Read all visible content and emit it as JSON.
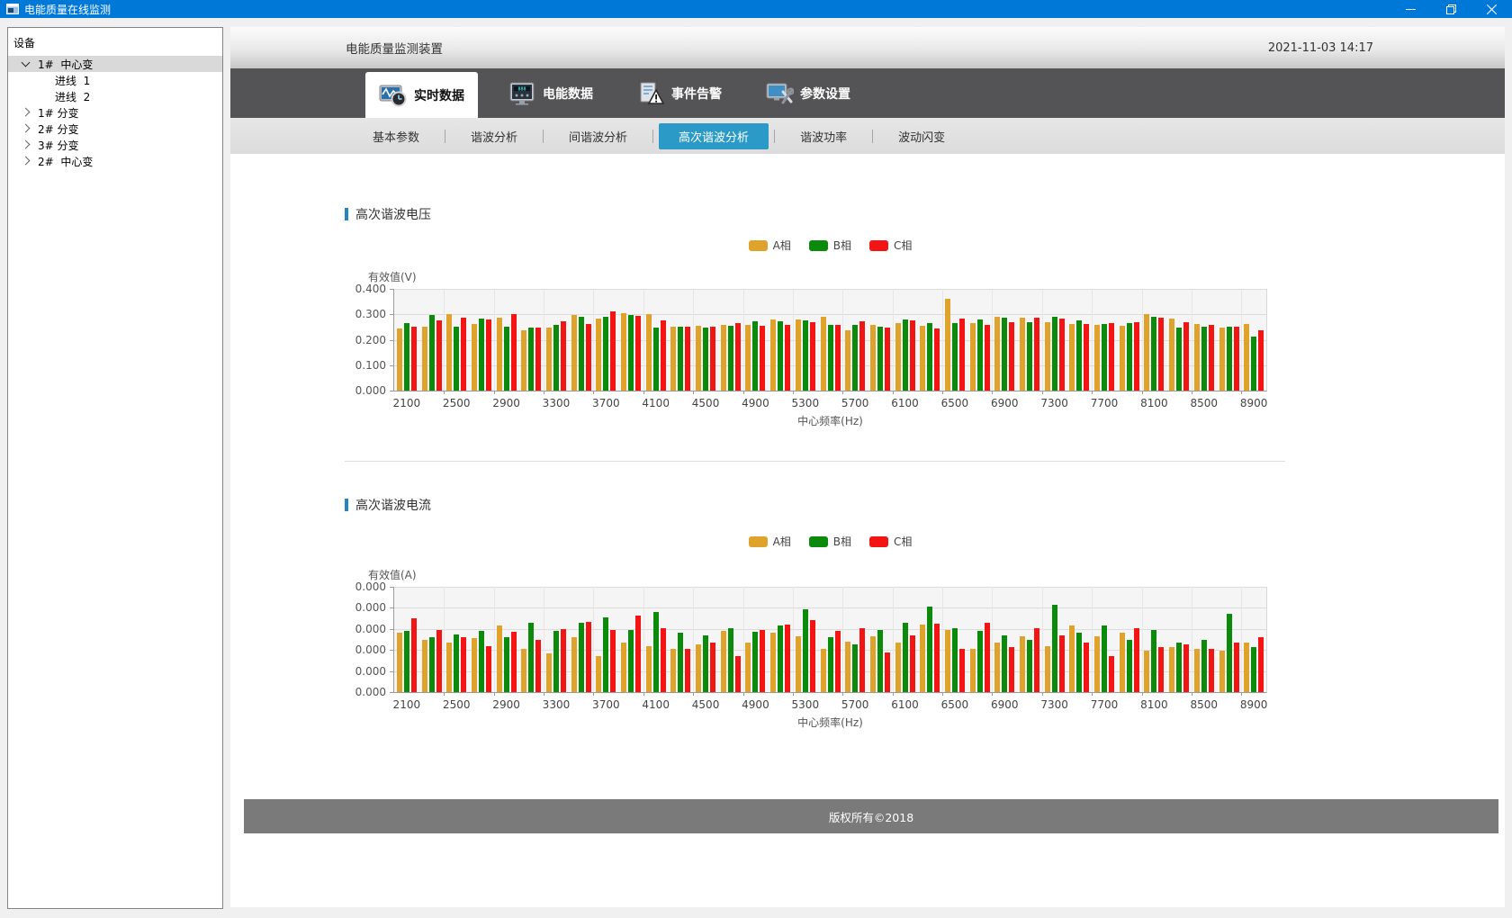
{
  "window": {
    "title": "电能质量在线监测",
    "titlebar_color": "#0078d7"
  },
  "sidebar": {
    "header": "设备",
    "items": [
      {
        "label": "1#  中心变",
        "chevron": "expanded",
        "level": 1,
        "selected": true
      },
      {
        "label": "进线  1",
        "chevron": "none",
        "level": 2,
        "selected": false
      },
      {
        "label": "进线  2",
        "chevron": "none",
        "level": 2,
        "selected": false
      },
      {
        "label": "1# 分变",
        "chevron": "collapsed",
        "level": 1,
        "selected": false
      },
      {
        "label": "2# 分变",
        "chevron": "collapsed",
        "level": 1,
        "selected": false
      },
      {
        "label": "3# 分变",
        "chevron": "collapsed",
        "level": 1,
        "selected": false
      },
      {
        "label": "2#  中心变",
        "chevron": "collapsed",
        "level": 1,
        "selected": false
      }
    ]
  },
  "header": {
    "title": "电能质量监测装置",
    "datetime": "2021-11-03 14:17"
  },
  "tabs": [
    {
      "label": "实时数据",
      "icon": "realtime-waveform-clock-icon",
      "selected": true
    },
    {
      "label": "电能数据",
      "icon": "energy-meter-icon",
      "selected": false
    },
    {
      "label": "事件告警",
      "icon": "event-alarm-icon",
      "selected": false
    },
    {
      "label": "参数设置",
      "icon": "parameter-settings-icon",
      "selected": false
    }
  ],
  "subtabs": [
    {
      "label": "基本参数",
      "selected": false
    },
    {
      "label": "谐波分析",
      "selected": false
    },
    {
      "label": "间谐波分析",
      "selected": false
    },
    {
      "label": "高次谐波分析",
      "selected": true
    },
    {
      "label": "谐波功率",
      "selected": false
    },
    {
      "label": "波动闪变",
      "selected": false
    }
  ],
  "footer": {
    "copyright": "版权所有©2018"
  },
  "colors": {
    "phase_a": "#dfa32c",
    "phase_b": "#0b8a0b",
    "phase_c": "#f31414",
    "subtab_selected": "#2b9ac7",
    "titlebar": "#0078d7",
    "tabstrip": "#545456",
    "footer_bar": "#7a7a7a"
  },
  "chart_data": [
    {
      "type": "bar",
      "section_title": "高次谐波电压",
      "ylabel": "有效值(V)",
      "xlabel": "中心频率(Hz)",
      "ylim": [
        0,
        0.4
      ],
      "y_tick_labels": [
        "0.400",
        "0.300",
        "0.200",
        "0.100",
        "0.000"
      ],
      "x_axis_labels": [
        "2100",
        "2500",
        "2900",
        "3300",
        "3700",
        "4100",
        "4500",
        "4900",
        "5300",
        "5700",
        "6100",
        "6500",
        "6900",
        "7300",
        "7700",
        "8100",
        "8500",
        "8900"
      ],
      "categories": [
        2100,
        2300,
        2500,
        2700,
        2900,
        3100,
        3300,
        3500,
        3700,
        3900,
        4100,
        4300,
        4500,
        4700,
        4900,
        5100,
        5300,
        5500,
        5700,
        5900,
        6100,
        6300,
        6500,
        6700,
        6900,
        7100,
        7300,
        7500,
        7700,
        7900,
        8100,
        8300,
        8500,
        8700,
        8900
      ],
      "legend": [
        "A相",
        "B相",
        "C相"
      ],
      "legend_position": "top-center",
      "grid": true,
      "series": [
        {
          "name": "A相",
          "color": "#dfa32c",
          "values": [
            0.245,
            0.253,
            0.3,
            0.263,
            0.288,
            0.238,
            0.248,
            0.299,
            0.282,
            0.304,
            0.3,
            0.252,
            0.256,
            0.259,
            0.258,
            0.281,
            0.28,
            0.289,
            0.236,
            0.258,
            0.266,
            0.255,
            0.36,
            0.266,
            0.291,
            0.287,
            0.268,
            0.262,
            0.258,
            0.255,
            0.302,
            0.283,
            0.262,
            0.247,
            0.262
          ]
        },
        {
          "name": "B相",
          "color": "#0b8a0b",
          "values": [
            0.265,
            0.297,
            0.252,
            0.284,
            0.253,
            0.248,
            0.257,
            0.291,
            0.289,
            0.297,
            0.248,
            0.25,
            0.248,
            0.254,
            0.273,
            0.274,
            0.276,
            0.26,
            0.259,
            0.25,
            0.281,
            0.264,
            0.266,
            0.28,
            0.287,
            0.27,
            0.292,
            0.277,
            0.262,
            0.266,
            0.291,
            0.247,
            0.252,
            0.252,
            0.212
          ]
        },
        {
          "name": "C相",
          "color": "#f31414",
          "values": [
            0.253,
            0.275,
            0.288,
            0.281,
            0.3,
            0.248,
            0.271,
            0.263,
            0.311,
            0.295,
            0.277,
            0.253,
            0.252,
            0.267,
            0.254,
            0.26,
            0.27,
            0.257,
            0.273,
            0.249,
            0.275,
            0.246,
            0.283,
            0.259,
            0.27,
            0.288,
            0.284,
            0.263,
            0.265,
            0.27,
            0.288,
            0.27,
            0.26,
            0.251,
            0.237
          ]
        }
      ]
    },
    {
      "type": "bar",
      "section_title": "高次谐波电流",
      "ylabel": "有效值(A)",
      "xlabel": "中心频率(Hz)",
      "ylim": [
        0,
        1
      ],
      "value_scale_note": "all y-axis tick labels render as 0.000; bar values below are relative plot heights (0-1), absolute amperes not readable",
      "y_tick_labels": [
        "0.000",
        "0.000",
        "0.000",
        "0.000",
        "0.000",
        "0.000"
      ],
      "x_axis_labels": [
        "2100",
        "2500",
        "2900",
        "3300",
        "3700",
        "4100",
        "4500",
        "4900",
        "5300",
        "5700",
        "6100",
        "6500",
        "6900",
        "7300",
        "7700",
        "8100",
        "8500",
        "8900"
      ],
      "categories": [
        2100,
        2300,
        2500,
        2700,
        2900,
        3100,
        3300,
        3500,
        3700,
        3900,
        4100,
        4300,
        4500,
        4700,
        4900,
        5100,
        5300,
        5500,
        5700,
        5900,
        6100,
        6300,
        6500,
        6700,
        6900,
        7100,
        7300,
        7500,
        7700,
        7900,
        8100,
        8300,
        8500,
        8700,
        8900
      ],
      "legend": [
        "A相",
        "B相",
        "C相"
      ],
      "legend_position": "top-center",
      "grid": true,
      "series": [
        {
          "name": "A相",
          "color": "#dfa32c",
          "values": [
            0.56,
            0.5,
            0.47,
            0.51,
            0.63,
            0.41,
            0.37,
            0.52,
            0.34,
            0.47,
            0.44,
            0.41,
            0.45,
            0.58,
            0.47,
            0.56,
            0.53,
            0.41,
            0.48,
            0.53,
            0.47,
            0.64,
            0.59,
            0.41,
            0.47,
            0.53,
            0.44,
            0.63,
            0.53,
            0.56,
            0.39,
            0.43,
            0.41,
            0.39,
            0.47
          ]
        },
        {
          "name": "B相",
          "color": "#0b8a0b",
          "values": [
            0.58,
            0.52,
            0.55,
            0.58,
            0.52,
            0.66,
            0.58,
            0.66,
            0.71,
            0.59,
            0.76,
            0.56,
            0.54,
            0.61,
            0.57,
            0.63,
            0.79,
            0.52,
            0.45,
            0.59,
            0.66,
            0.81,
            0.61,
            0.58,
            0.54,
            0.5,
            0.83,
            0.56,
            0.63,
            0.5,
            0.59,
            0.47,
            0.5,
            0.74,
            0.43
          ]
        },
        {
          "name": "C相",
          "color": "#f31414",
          "values": [
            0.7,
            0.59,
            0.52,
            0.44,
            0.57,
            0.5,
            0.6,
            0.67,
            0.59,
            0.73,
            0.61,
            0.41,
            0.47,
            0.34,
            0.59,
            0.64,
            0.68,
            0.58,
            0.61,
            0.38,
            0.54,
            0.65,
            0.41,
            0.66,
            0.43,
            0.61,
            0.54,
            0.47,
            0.34,
            0.61,
            0.43,
            0.45,
            0.41,
            0.47,
            0.52
          ]
        }
      ]
    }
  ]
}
